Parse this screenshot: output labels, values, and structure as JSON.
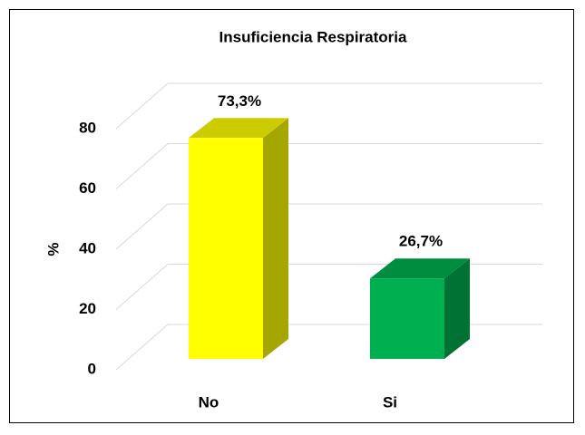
{
  "chart_data": {
    "type": "bar3d",
    "title": "Insuficiencia Respiratoria",
    "y_label": "%",
    "categories": [
      "No",
      "Si"
    ],
    "values": [
      73.3,
      26.7
    ],
    "value_labels": [
      "73,3%",
      "26,7%"
    ],
    "colors": [
      "#ffff00",
      "#00b050"
    ],
    "ylim": [
      0,
      80
    ],
    "yticks": [
      0,
      20,
      40,
      60,
      80
    ],
    "grid": true
  }
}
